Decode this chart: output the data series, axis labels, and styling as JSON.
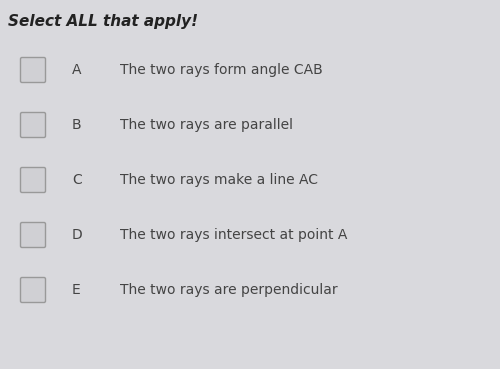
{
  "title": "Select ALL that apply!",
  "title_fontsize": 11,
  "background_color": "#d9d9dd",
  "options": [
    {
      "label": "A",
      "text": "The two rays form angle CAB"
    },
    {
      "label": "B",
      "text": "The two rays are parallel"
    },
    {
      "label": "C",
      "text": "The two rays make a line AC"
    },
    {
      "label": "D",
      "text": "The two rays intersect at point A"
    },
    {
      "label": "E",
      "text": "The two rays are perpendicular"
    }
  ],
  "option_fontsize": 10,
  "label_fontsize": 10,
  "checkbox_color": "#d0d0d4",
  "checkbox_edge_color": "#999999",
  "text_color": "#444444",
  "title_color": "#222222"
}
